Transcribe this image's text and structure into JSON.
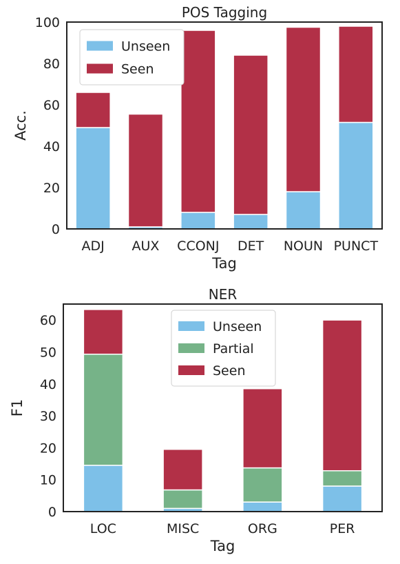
{
  "colors": {
    "unseen": "#7dc0e8",
    "partial": "#76b388",
    "seen": "#b23047"
  },
  "chart_data": [
    {
      "type": "bar",
      "stacked": true,
      "title": "POS Tagging",
      "xlabel": "Tag",
      "ylabel": "Acc.",
      "ylim": [
        0,
        100
      ],
      "yticks": [
        0,
        20,
        40,
        60,
        80,
        100
      ],
      "categories": [
        "ADJ",
        "AUX",
        "CCONJ",
        "DET",
        "NOUN",
        "PUNCT"
      ],
      "legend": "top-left",
      "series": [
        {
          "name": "Unseen",
          "color_key": "unseen",
          "values": [
            49,
            1,
            8,
            7,
            18,
            51.5
          ]
        },
        {
          "name": "Seen",
          "color_key": "seen",
          "values": [
            17,
            54.5,
            88,
            77,
            79.5,
            46.5
          ]
        }
      ]
    },
    {
      "type": "bar",
      "stacked": true,
      "title": "NER",
      "xlabel": "Tag",
      "ylabel": "F1",
      "ylim": [
        0,
        65
      ],
      "yticks": [
        0,
        10,
        20,
        30,
        40,
        50,
        60
      ],
      "categories": [
        "LOC",
        "MISC",
        "ORG",
        "PER"
      ],
      "legend": "top-center",
      "series": [
        {
          "name": "Unseen",
          "color_key": "unseen",
          "values": [
            14.5,
            1,
            3,
            8
          ]
        },
        {
          "name": "Partial",
          "color_key": "partial",
          "values": [
            34.8,
            5.8,
            10.7,
            4.8
          ]
        },
        {
          "name": "Seen",
          "color_key": "seen",
          "values": [
            14,
            12.7,
            24.8,
            47.2
          ]
        }
      ]
    }
  ]
}
